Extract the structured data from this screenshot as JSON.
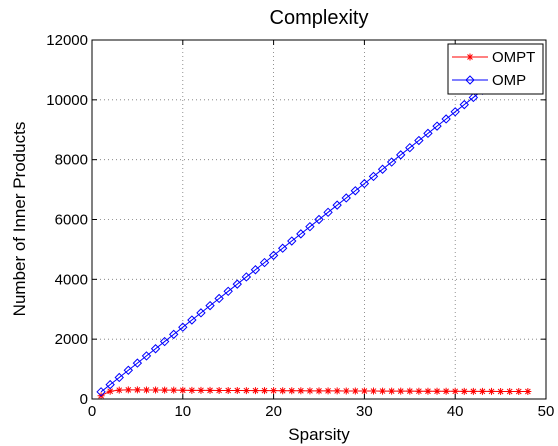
{
  "chart_data": {
    "type": "line",
    "title": "Complexity",
    "xlabel": "Sparsity",
    "ylabel": "Number of Inner Products",
    "xlim": [
      0,
      50
    ],
    "ylim": [
      0,
      12000
    ],
    "xticks": [
      0,
      10,
      20,
      30,
      40,
      50
    ],
    "yticks": [
      0,
      2000,
      4000,
      6000,
      8000,
      10000,
      12000
    ],
    "grid": true,
    "legend_position": "top-right",
    "series": [
      {
        "name": "OMPT",
        "color": "#ff0000",
        "marker": "asterisk",
        "x": [
          1,
          2,
          3,
          4,
          5,
          6,
          7,
          8,
          9,
          10,
          11,
          12,
          13,
          14,
          15,
          16,
          17,
          18,
          19,
          20,
          21,
          22,
          23,
          24,
          25,
          26,
          27,
          28,
          29,
          30,
          31,
          32,
          33,
          34,
          35,
          36,
          37,
          38,
          39,
          40,
          41,
          42,
          43,
          44,
          45,
          46,
          47,
          48
        ],
        "values": [
          110,
          260,
          295,
          305,
          305,
          300,
          300,
          298,
          295,
          293,
          290,
          290,
          288,
          286,
          285,
          283,
          282,
          281,
          280,
          278,
          277,
          276,
          275,
          273,
          272,
          271,
          270,
          269,
          268,
          267,
          266,
          265,
          264,
          263,
          262,
          261,
          260,
          259,
          258,
          257,
          256,
          255,
          254,
          253,
          252,
          251,
          250,
          250
        ]
      },
      {
        "name": "OMP",
        "color": "#0000ff",
        "marker": "diamond",
        "x": [
          1,
          2,
          3,
          4,
          5,
          6,
          7,
          8,
          9,
          10,
          11,
          12,
          13,
          14,
          15,
          16,
          17,
          18,
          19,
          20,
          21,
          22,
          23,
          24,
          25,
          26,
          27,
          28,
          29,
          30,
          31,
          32,
          33,
          34,
          35,
          36,
          37,
          38,
          39,
          40,
          41,
          42,
          43,
          44,
          45,
          46,
          47,
          48
        ],
        "values": [
          240,
          480,
          720,
          960,
          1200,
          1440,
          1680,
          1920,
          2160,
          2400,
          2640,
          2880,
          3120,
          3360,
          3600,
          3840,
          4080,
          4320,
          4560,
          4800,
          5040,
          5280,
          5520,
          5760,
          6000,
          6240,
          6480,
          6720,
          6960,
          7200,
          7440,
          7680,
          7920,
          8160,
          8400,
          8640,
          8880,
          9120,
          9360,
          9600,
          9840,
          10080,
          10320,
          10560,
          10800,
          11040,
          11280,
          11520
        ]
      }
    ]
  }
}
